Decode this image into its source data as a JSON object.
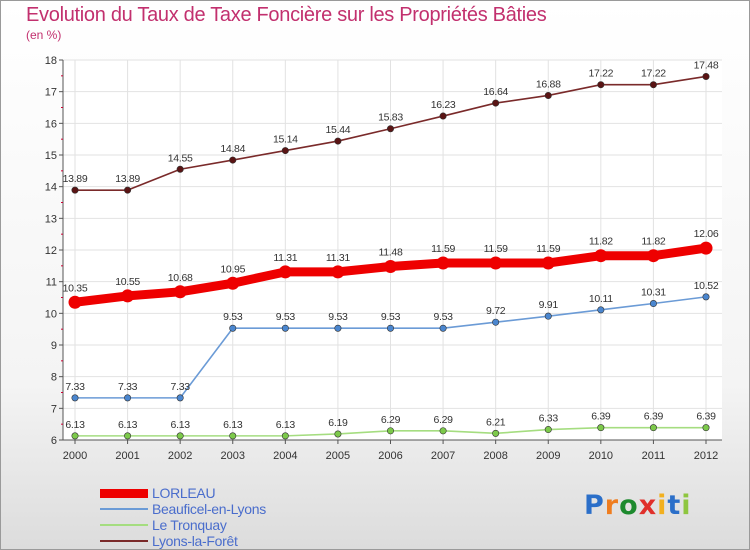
{
  "header": {
    "title": "Evolution du Taux de Taxe Foncière sur les Propriétés Bâties",
    "subtitle": "(en %)"
  },
  "logo": {
    "text": "Proxiti",
    "letter_colors": [
      "#2b6fc9",
      "#ef7d1f",
      "#1d8a2e",
      "#e0302b",
      "#f2b01f",
      "#2b6fc9",
      "#8ec63f"
    ]
  },
  "chart_data": {
    "type": "line",
    "x": [
      "2000",
      "2001",
      "2002",
      "2003",
      "2004",
      "2005",
      "2006",
      "2007",
      "2008",
      "2009",
      "2010",
      "2011",
      "2012"
    ],
    "ylim": [
      6,
      18
    ],
    "yticks": [
      "6",
      "7",
      "8",
      "9",
      "10",
      "11",
      "12",
      "13",
      "14",
      "15",
      "16",
      "17",
      "18"
    ],
    "grid": true,
    "legend_position": "bottom-left",
    "series": [
      {
        "name": "LORLEAU",
        "color": "#ee0000",
        "marker_color": "#ee0000",
        "values": [
          10.35,
          10.55,
          10.68,
          10.95,
          11.31,
          11.31,
          11.48,
          11.59,
          11.59,
          11.59,
          11.82,
          11.82,
          12.06
        ],
        "labels": [
          "10.35",
          "10.55",
          "10.68",
          "10.95",
          "11.31",
          "11.31",
          "11.48",
          "11.59",
          "11.59",
          "11.59",
          "11.82",
          "11.82",
          "12.06"
        ]
      },
      {
        "name": "Beauficel-en-Lyons",
        "color": "#6b9bd6",
        "marker_color": "#4a86cf",
        "values": [
          7.33,
          7.33,
          7.33,
          9.53,
          9.53,
          9.53,
          9.53,
          9.53,
          9.72,
          9.91,
          10.11,
          10.31,
          10.52
        ],
        "labels": [
          "7.33",
          "7.33",
          "7.33",
          "9.53",
          "9.53",
          "9.53",
          "9.53",
          "9.53",
          "9.72",
          "9.91",
          "10.11",
          "10.31",
          "10.52"
        ]
      },
      {
        "name": "Le Tronquay",
        "color": "#a5dd80",
        "marker_color": "#7cc94a",
        "values": [
          6.13,
          6.13,
          6.13,
          6.13,
          6.13,
          6.19,
          6.29,
          6.29,
          6.21,
          6.33,
          6.39,
          6.39,
          6.39
        ],
        "labels": [
          "6.13",
          "6.13",
          "6.13",
          "6.13",
          "6.13",
          "6.19",
          "6.29",
          "6.29",
          "6.21",
          "6.33",
          "6.39",
          "6.39",
          "6.39"
        ]
      },
      {
        "name": "Lyons-la-Forêt",
        "color": "#7a2a2a",
        "marker_color": "#5a1414",
        "values": [
          13.89,
          13.89,
          14.55,
          14.84,
          15.14,
          15.44,
          15.83,
          16.23,
          16.64,
          16.88,
          17.22,
          17.22,
          17.48
        ],
        "labels": [
          "13.89",
          "13.89",
          "14.55",
          "14.84",
          "15.14",
          "15.44",
          "15.83",
          "16.23",
          "16.64",
          "16.88",
          "17.22",
          "17.22",
          "17.48"
        ]
      }
    ]
  }
}
